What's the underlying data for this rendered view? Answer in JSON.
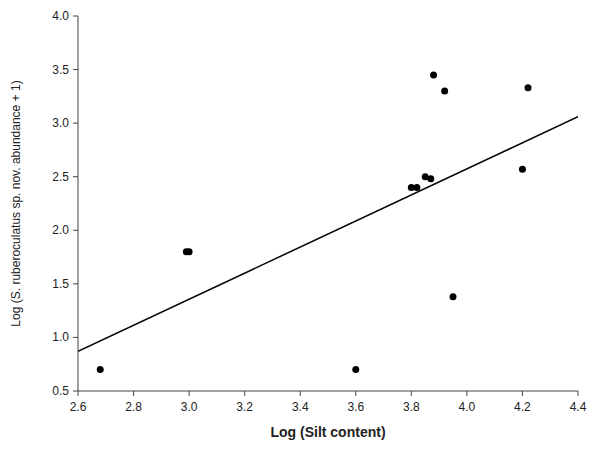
{
  "chart_data": {
    "type": "scatter",
    "xlabel": "Log (Silt content)",
    "ylabel": "Log (S. ruberoculatus sp. nov. abundance + 1)",
    "series": [
      {
        "type": "scatter",
        "color": "#000000",
        "x": [
          2.68,
          2.99,
          3.0,
          3.6,
          3.8,
          3.82,
          3.85,
          3.87,
          3.88,
          3.92,
          3.95,
          4.2,
          4.22
        ],
        "values": [
          0.7,
          1.8,
          1.8,
          0.7,
          2.4,
          2.4,
          2.5,
          2.48,
          3.45,
          3.3,
          1.38,
          2.57,
          3.33
        ]
      },
      {
        "type": "line",
        "color": "#000000",
        "x": [
          2.6,
          4.4
        ],
        "values": [
          0.87,
          3.06
        ]
      }
    ],
    "xlim": [
      2.6,
      4.4
    ],
    "ylim": [
      0.5,
      4.0
    ],
    "xticks": [
      2.6,
      2.8,
      {
        "value": 3,
        "label": "3.0"
      },
      3.2,
      3.4,
      3.6,
      3.8,
      {
        "value": 4,
        "label": "4.0"
      },
      4.2,
      4.4
    ],
    "yticks": [
      0.5,
      {
        "value": 1,
        "label": "1.0"
      },
      1.5,
      {
        "value": 2,
        "label": "2.0"
      },
      2.5,
      {
        "value": 3,
        "label": "3.0"
      },
      3.5,
      {
        "value": 4,
        "label": "4.0"
      }
    ],
    "grid": false
  }
}
